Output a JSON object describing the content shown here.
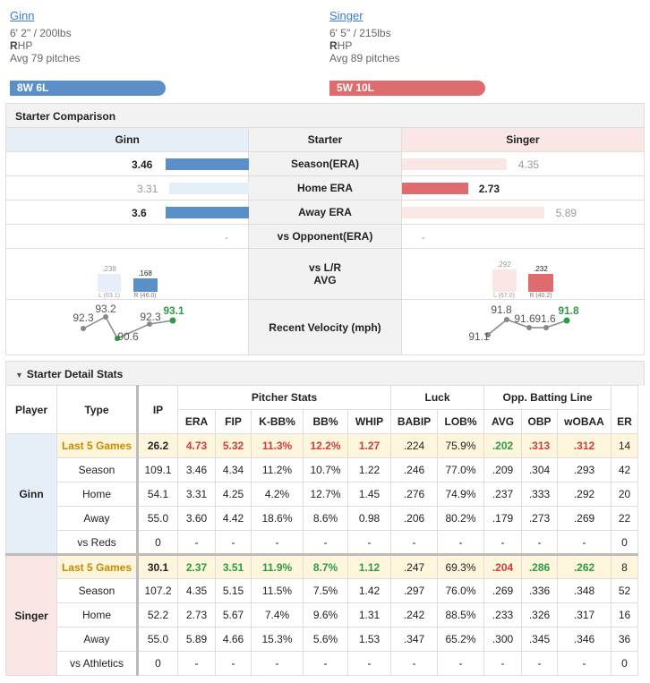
{
  "home": {
    "name": "Ginn",
    "size": "6' 2\" / 200lbs",
    "hand_b": "R",
    "hand_rest": "HP",
    "avg_pitches": "Avg 79 pitches",
    "record": "8W 6L"
  },
  "away": {
    "name": "Singer",
    "size": "6' 5\" / 215lbs",
    "hand_b": "R",
    "hand_rest": "HP",
    "avg_pitches": "Avg 89 pitches",
    "record": "5W 10L"
  },
  "comparison": {
    "title": "Starter Comparison",
    "header_center": "Starter",
    "rows": [
      {
        "label": "Season(ERA)",
        "left": "3.46",
        "right": "4.35"
      },
      {
        "label": "Home ERA",
        "left": "3.31",
        "right": "2.73"
      },
      {
        "label": "Away ERA",
        "left": "3.6",
        "right": "5.89"
      },
      {
        "label": "vs Opponent(ERA)",
        "left": "-",
        "right": "-"
      }
    ],
    "lr_label_1": "vs L/R",
    "lr_label_2": "AVG",
    "home_lr": {
      "l_val": ".238",
      "l_tag": "L (63.1)",
      "r_val": ".168",
      "r_tag": "R (46.0)"
    },
    "away_lr": {
      "l_val": ".292",
      "l_tag": "L (67.0)",
      "r_val": ".232",
      "r_tag": "R (40.2)"
    },
    "velocity_label": "Recent Velocity (mph)",
    "home_velocity": [
      "92.3",
      "93.2",
      "90.6",
      "92.3",
      "93.1"
    ],
    "away_velocity": [
      "91.1",
      "91.8",
      "91.6",
      "91.6",
      "91.8"
    ]
  },
  "detail": {
    "title": "Starter Detail Stats",
    "group_headers": [
      "Pitcher Stats",
      "Luck",
      "Opp. Batting Line"
    ],
    "headers": [
      "Player",
      "Type",
      "IP",
      "ERA",
      "FIP",
      "K-BB%",
      "BB%",
      "WHIP",
      "BABIP",
      "LOB%",
      "AVG",
      "OBP",
      "wOBAA",
      "ER"
    ],
    "home_rows": [
      [
        "Last 5 Games",
        "26.2",
        "4.73",
        "5.32",
        "11.3%",
        "12.2%",
        "1.27",
        ".224",
        "75.9%",
        ".202",
        ".313",
        ".312",
        "14"
      ],
      [
        "Season",
        "109.1",
        "3.46",
        "4.34",
        "11.2%",
        "10.7%",
        "1.22",
        ".246",
        "77.0%",
        ".209",
        ".304",
        ".293",
        "42"
      ],
      [
        "Home",
        "54.1",
        "3.31",
        "4.25",
        "4.2%",
        "12.7%",
        "1.45",
        ".276",
        "74.9%",
        ".237",
        ".333",
        ".292",
        "20"
      ],
      [
        "Away",
        "55.0",
        "3.60",
        "4.42",
        "18.6%",
        "8.6%",
        "0.98",
        ".206",
        "80.2%",
        ".179",
        ".273",
        ".269",
        "22"
      ],
      [
        "vs Reds",
        "0",
        "-",
        "-",
        "-",
        "-",
        "-",
        "-",
        "-",
        "-",
        "-",
        "-",
        "0"
      ]
    ],
    "away_rows": [
      [
        "Last 5 Games",
        "30.1",
        "2.37",
        "3.51",
        "11.9%",
        "8.7%",
        "1.12",
        ".247",
        "69.3%",
        ".204",
        ".286",
        ".262",
        "8"
      ],
      [
        "Season",
        "107.2",
        "4.35",
        "5.15",
        "11.5%",
        "7.5%",
        "1.42",
        ".297",
        "76.0%",
        ".269",
        ".336",
        ".348",
        "52"
      ],
      [
        "Home",
        "52.2",
        "2.73",
        "5.67",
        "7.4%",
        "9.6%",
        "1.31",
        ".242",
        "88.5%",
        ".233",
        ".326",
        ".317",
        "16"
      ],
      [
        "Away",
        "55.0",
        "5.89",
        "4.66",
        "15.3%",
        "5.6%",
        "1.53",
        ".347",
        "65.2%",
        ".300",
        ".345",
        ".346",
        "36"
      ],
      [
        "vs Athletics",
        "0",
        "-",
        "-",
        "-",
        "-",
        "-",
        "-",
        "-",
        "-",
        "-",
        "-",
        "0"
      ]
    ]
  },
  "colors": {
    "home": "#5b8fc7",
    "away": "#de6b6e",
    "highlight_red": "#d23c3c",
    "highlight_green": "#2e9a45"
  }
}
